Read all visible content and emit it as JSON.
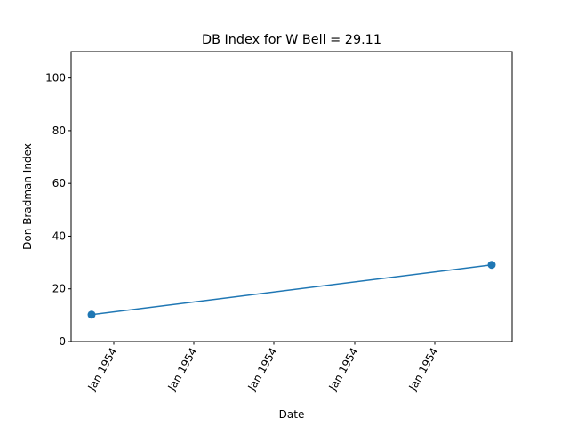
{
  "chart_data": {
    "type": "line",
    "title": "DB Index for W Bell = 29.11",
    "xlabel": "Date",
    "ylabel": "Don Bradman Index",
    "x_tick_labels": [
      "Jan 1954",
      "Jan 1954",
      "Jan 1954",
      "Jan 1954",
      "Jan 1954"
    ],
    "y_ticks": [
      0,
      20,
      40,
      60,
      80,
      100
    ],
    "ylim": [
      0,
      110
    ],
    "grid": false,
    "series": [
      {
        "points": [
          {
            "x": "1954-01",
            "y": 10.2
          },
          {
            "x": "1954-01",
            "y": 29.11
          }
        ],
        "color": "#1f77b4",
        "marker": "circle"
      }
    ]
  }
}
